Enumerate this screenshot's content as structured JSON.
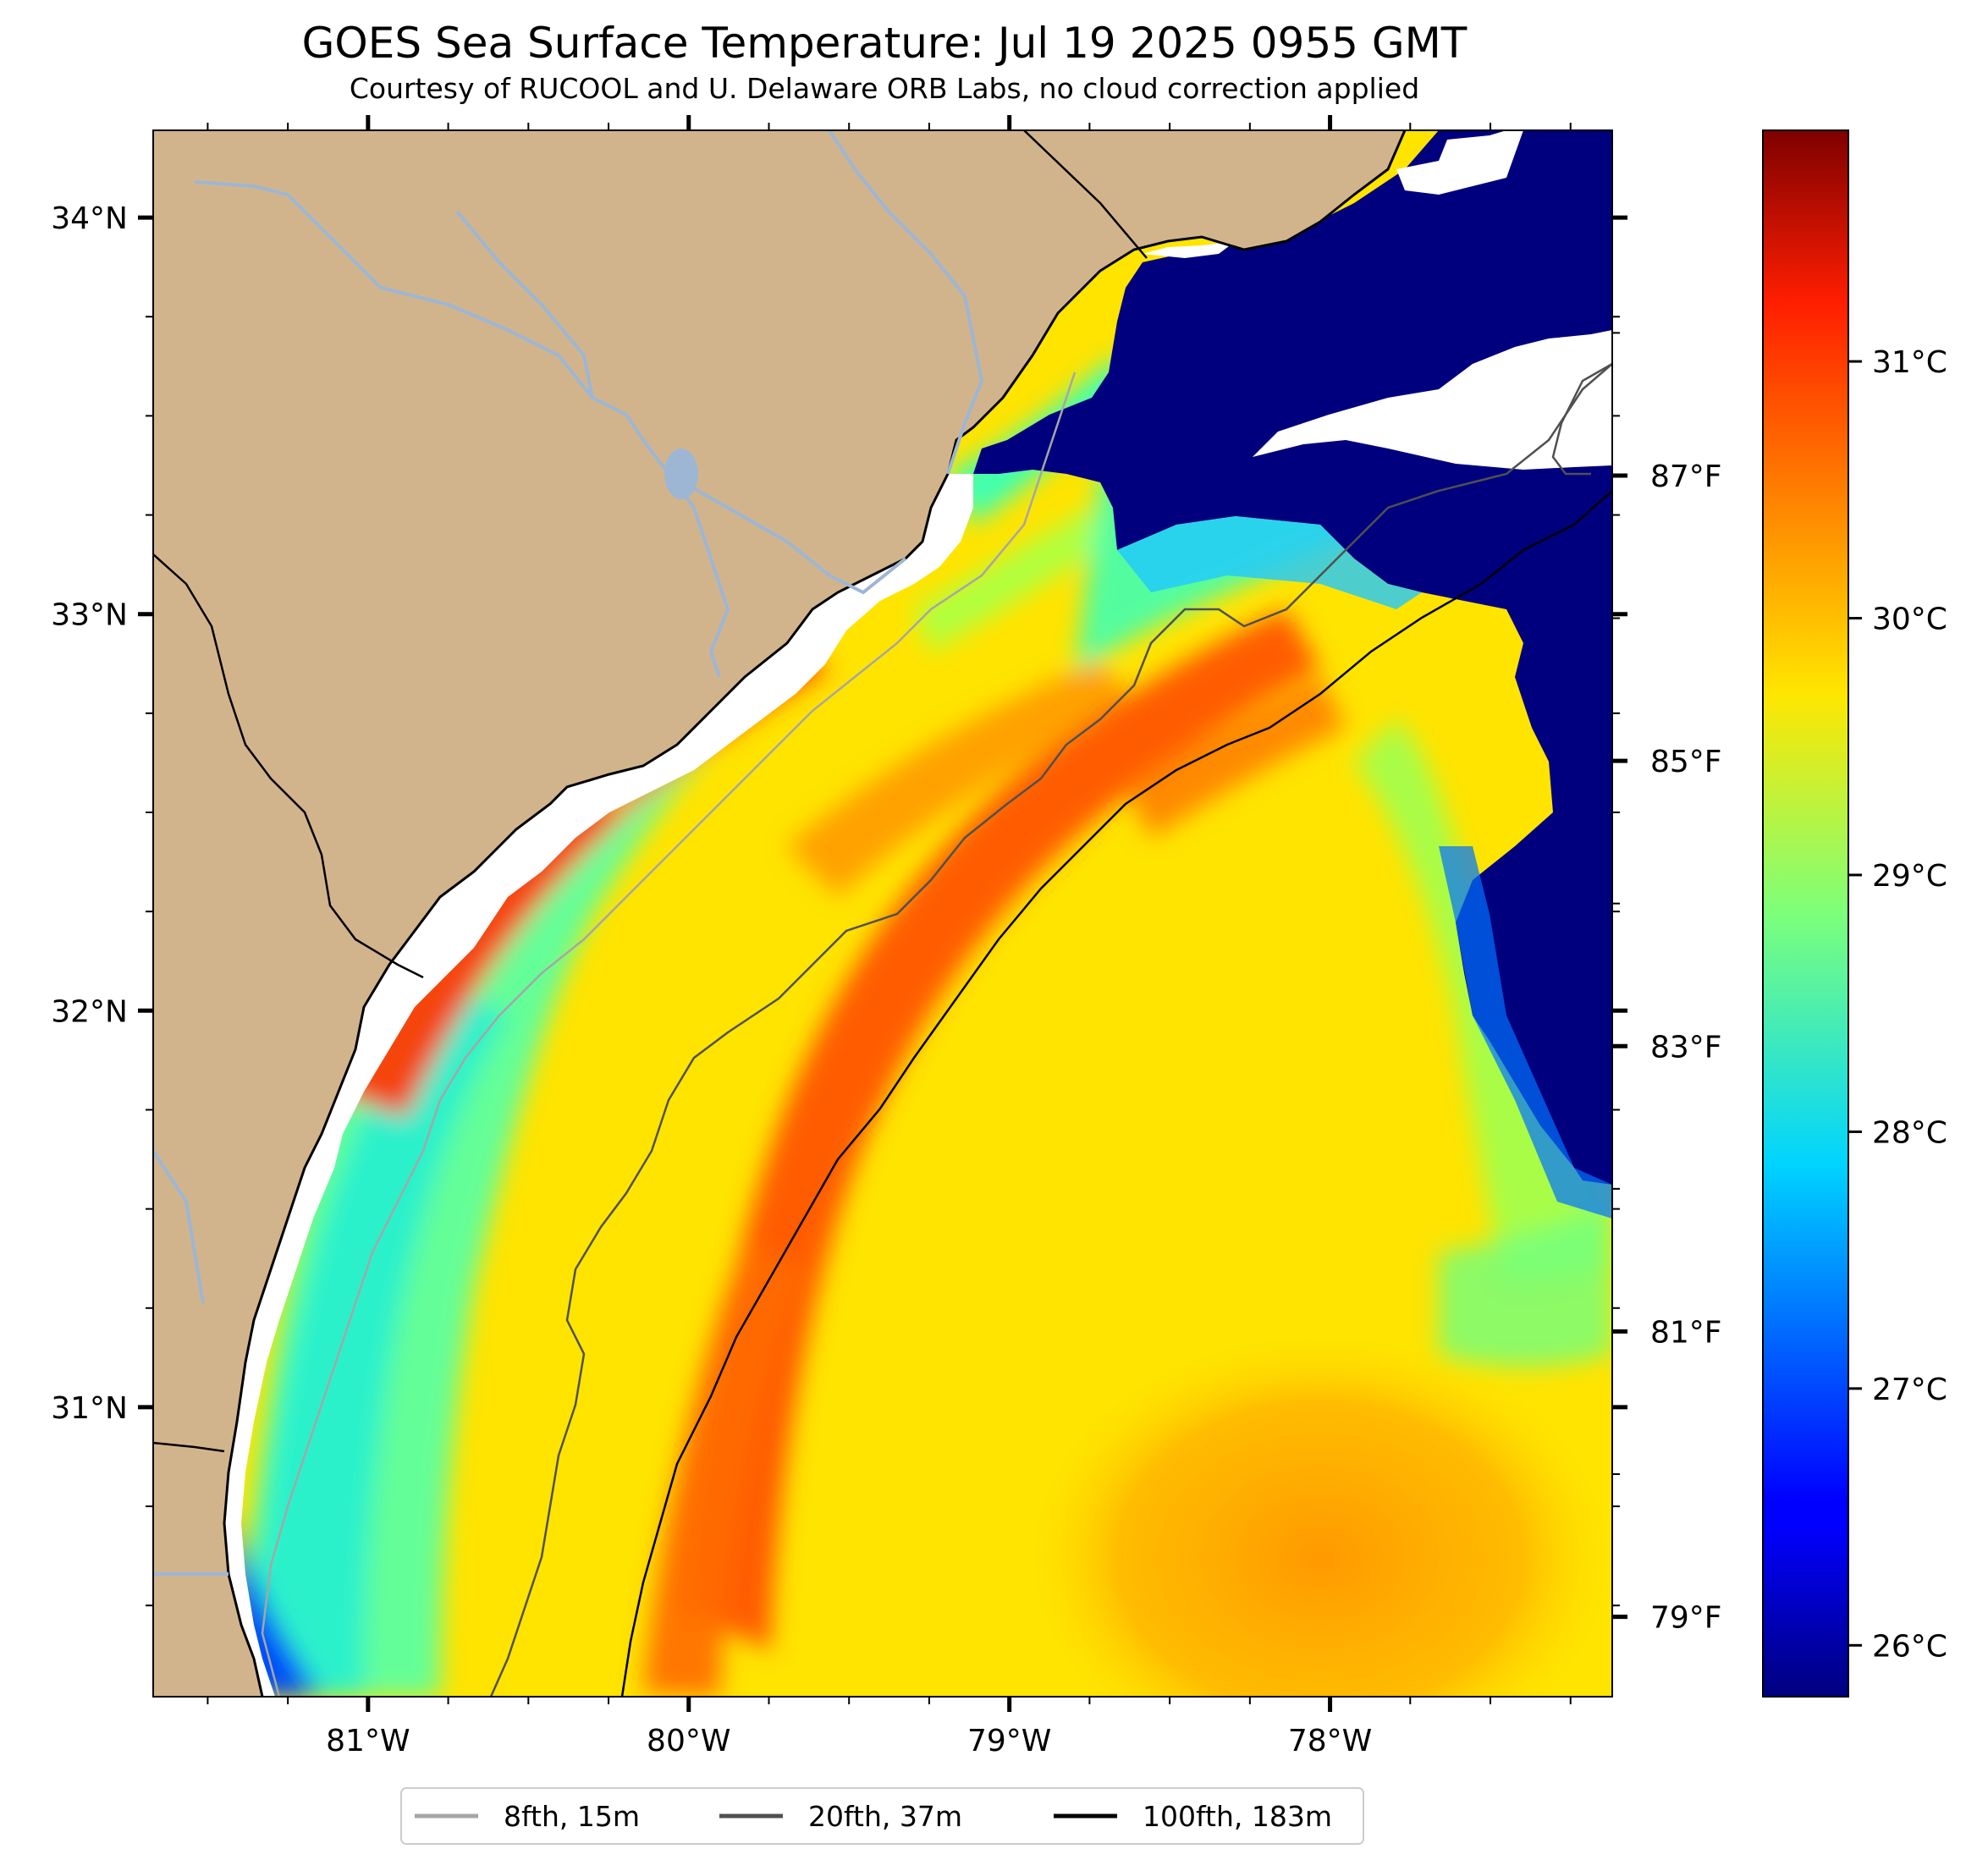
{
  "title": "GOES Sea Surface Temperature: Jul 19 2025 0955 GMT",
  "subtitle": "Courtesy of RUCOOL and U. Delaware ORB Labs, no cloud correction applied",
  "map": {
    "lon_range": [
      -81.67,
      -77.12
    ],
    "lat_range": [
      30.27,
      34.22
    ],
    "lat_ticks": [
      {
        "value": 34,
        "label": "34°N"
      },
      {
        "value": 33,
        "label": "33°N"
      },
      {
        "value": 32,
        "label": "32°N"
      },
      {
        "value": 31,
        "label": "31°N"
      }
    ],
    "lon_ticks": [
      {
        "value": -81,
        "label": "81°W"
      },
      {
        "value": -80,
        "label": "80°W"
      },
      {
        "value": -79,
        "label": "79°W"
      },
      {
        "value": -78,
        "label": "78°W"
      }
    ],
    "colors": {
      "land": "#d2b48c",
      "rivers": "#9db6d4",
      "no_data": "#ffffff"
    }
  },
  "colorbar": {
    "colormap": "jet",
    "range_c": [
      25.8,
      31.9
    ],
    "celsius_ticks": [
      {
        "value": 31,
        "label": "31°C"
      },
      {
        "value": 30,
        "label": "30°C"
      },
      {
        "value": 29,
        "label": "29°C"
      },
      {
        "value": 28,
        "label": "28°C"
      },
      {
        "value": 27,
        "label": "27°C"
      },
      {
        "value": 26,
        "label": "26°C"
      }
    ],
    "fahrenheit_ticks": [
      {
        "value": 87,
        "label": "87°F"
      },
      {
        "value": 85,
        "label": "85°F"
      },
      {
        "value": 83,
        "label": "83°F"
      },
      {
        "value": 81,
        "label": "81°F"
      },
      {
        "value": 79,
        "label": "79°F"
      }
    ]
  },
  "legend": {
    "placement": "bottom-center",
    "items": [
      {
        "label": "8fth, 15m",
        "color": "#a6a6a6"
      },
      {
        "label": "20fth, 37m",
        "color": "#505050"
      },
      {
        "label": "100fth, 183m",
        "color": "#000000"
      }
    ]
  }
}
